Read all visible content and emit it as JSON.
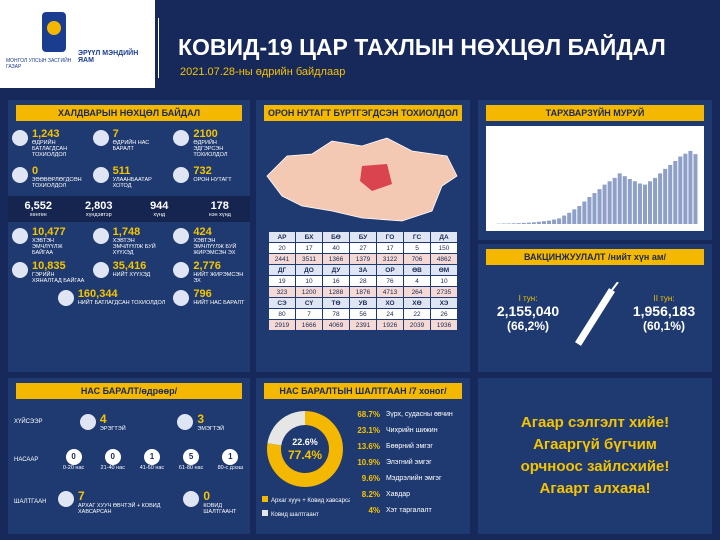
{
  "header": {
    "org_small": "МОНГОЛ УЛСЫН ЗАСГИЙН ГАЗАР",
    "org": "ЭРҮҮЛ МЭНДИЙН ЯАМ",
    "title": "КОВИД-19 ЦАР ТАХЛЫН НӨХЦӨЛ БАЙДАЛ",
    "subtitle": "2021.07.28-ны өдрийн байдлаар"
  },
  "infection": {
    "title": "ХАЛДВАРЫН НӨХЦӨЛ БАЙДАЛ",
    "daily": [
      {
        "value": "1,243",
        "label": "ӨДРИЙН БАТЛАГДСАН ТОХИОЛДОЛ"
      },
      {
        "value": "7",
        "label": "ӨДРИЙН НАС БАРАЛТ"
      },
      {
        "value": "2100",
        "label": "ӨДРИЙН ЭДГЭРСЭН ТОХИОЛДОЛ"
      },
      {
        "value": "0",
        "label": "ЗӨӨВӨРЛӨГДСӨН ТОХИОЛДОЛ"
      },
      {
        "value": "511",
        "label": "УЛААНБААТАР ХОТОД"
      },
      {
        "value": "732",
        "label": "ОРОН НУТАГТ"
      }
    ],
    "severity": [
      {
        "value": "6,552",
        "label": "хөнгөн"
      },
      {
        "value": "2,803",
        "label": "хүндэвтэр"
      },
      {
        "value": "944",
        "label": "хүнд"
      },
      {
        "value": "178",
        "label": "нэн хүнд"
      }
    ],
    "totals": [
      {
        "value": "10,477",
        "label": "ХЭВТЭН ЭМЧЛҮҮЛЖ БАЙГАА"
      },
      {
        "value": "1,748",
        "label": "ХЭВТЭН ЭМЧЛҮҮЛЖ БУЙ ХҮҮХЭД"
      },
      {
        "value": "424",
        "label": "ХЭВТЭН ЭМЧЛҮҮЛЖ БУЙ ЖИРЭМСЭН ЭХ"
      },
      {
        "value": "10,835",
        "label": "ГЭРИЙН ХЯНАЛТАД БАЙГАА"
      },
      {
        "value": "35,416",
        "label": "НИЙТ ХҮҮХЭД"
      },
      {
        "value": "2,776",
        "label": "НИЙТ ЖИРЭМСЭН ЭХ"
      },
      {
        "value": "160,344",
        "label": "НИЙТ БАТЛАГДСАН ТОХИОЛДОЛ"
      },
      {
        "value": "796",
        "label": "НИЙТ НАС БАРАЛТ"
      }
    ]
  },
  "regional": {
    "title": "ОРОН НУТАГТ БҮРТГЭГДСЭН ТОХИОЛДОЛ",
    "blocks": [
      {
        "codes": [
          "АР",
          "БХ",
          "БӨ",
          "БУ",
          "ГО",
          "ГС",
          "ДА"
        ],
        "daily": [
          "20",
          "17",
          "40",
          "27",
          "17",
          "5",
          "150"
        ],
        "total": [
          "2441",
          "3511",
          "1366",
          "1379",
          "3122",
          "706",
          "4862"
        ]
      },
      {
        "codes": [
          "ДГ",
          "ДО",
          "ДУ",
          "ЗА",
          "ОР",
          "ӨВ",
          "ӨМ"
        ],
        "daily": [
          "19",
          "10",
          "16",
          "28",
          "76",
          "4",
          "10"
        ],
        "total": [
          "323",
          "1200",
          "1288",
          "1876",
          "4713",
          "264",
          "2735"
        ]
      },
      {
        "codes": [
          "СЭ",
          "СҮ",
          "ТӨ",
          "УВ",
          "ХО",
          "ХӨ",
          "ХЭ"
        ],
        "daily": [
          "80",
          "7",
          "78",
          "56",
          "24",
          "22",
          "26"
        ],
        "total": [
          "2919",
          "1666",
          "4069",
          "2391",
          "1926",
          "2039",
          "1936"
        ]
      }
    ]
  },
  "chart_data": [
    {
      "type": "bar",
      "title": "ТАРХВАРЗҮЙН МУРУЙ",
      "color": "#8fa0c8",
      "ylim": [
        0,
        1600
      ],
      "values": [
        5,
        8,
        10,
        12,
        15,
        20,
        25,
        30,
        40,
        50,
        60,
        80,
        100,
        150,
        200,
        260,
        320,
        400,
        480,
        550,
        620,
        700,
        760,
        820,
        900,
        850,
        800,
        760,
        720,
        700,
        760,
        820,
        900,
        980,
        1050,
        1120,
        1200,
        1250,
        1300,
        1243
      ]
    },
    {
      "type": "pie",
      "title": "НАС БАРАЛТЫН ШАЛТГААН /7 хоног/",
      "categories": [
        "Архаг хууч + Ковид хавсарсан",
        "Ковид шалтгаант"
      ],
      "values": [
        77.4,
        22.6
      ],
      "value_labels": [
        "77.4%",
        "22.6%"
      ],
      "colors": [
        "#f5b800",
        "#e6e6e6"
      ]
    }
  ],
  "vaccination": {
    "title": "ВАКЦИНЖУУЛАЛТ /нийт хүн ам/",
    "dose1": {
      "label": "I тун:",
      "value": "2,155,040",
      "pct": "(66,2%)"
    },
    "dose2": {
      "label": "II тун:",
      "value": "1,956,183",
      "pct": "(60,1%)"
    }
  },
  "deaths": {
    "title": "НАС БАРАЛТ/өдрөөр/",
    "gender_label": "ХҮЙСЭЭР",
    "gender": [
      {
        "value": "4",
        "label": "ЭРЭГТЭЙ"
      },
      {
        "value": "3",
        "label": "ЭМЭГТЭЙ"
      }
    ],
    "age_label": "НАСААР",
    "ages": [
      {
        "value": "0",
        "label": "0-20 нас"
      },
      {
        "value": "0",
        "label": "21-40 нас"
      },
      {
        "value": "1",
        "label": "41-60 нас"
      },
      {
        "value": "5",
        "label": "61-80 нас"
      },
      {
        "value": "1",
        "label": "80-с дээш"
      }
    ],
    "cause_label": "ШАЛТГААН",
    "causes": [
      {
        "value": "7",
        "label": "АРХАГ ХУУЧ ӨВЧТЭЙ + КОВИД ХАВСАРСАН"
      },
      {
        "value": "0",
        "label": "КОВИД ШАЛТГААНТ"
      }
    ]
  },
  "comorbidities": [
    {
      "pct": "68.7%",
      "name": "Зүрх, судасны өвчин"
    },
    {
      "pct": "23.1%",
      "name": "Чихрийн шижин"
    },
    {
      "pct": "13.6%",
      "name": "Бөөрний эмгэг"
    },
    {
      "pct": "10.9%",
      "name": "Элэгний эмгэг"
    },
    {
      "pct": "9.6%",
      "name": "Мэдрэлийн эмгэг"
    },
    {
      "pct": "8.2%",
      "name": "Хавдар"
    },
    {
      "pct": "4%",
      "name": "Хэт таргалалт"
    }
  ],
  "slogan": [
    "Агаар сэлгэлт хийе!",
    "Агааргүй бүгчим",
    "орчноос зайлсхийе!",
    "Агаарт алхаяа!"
  ]
}
